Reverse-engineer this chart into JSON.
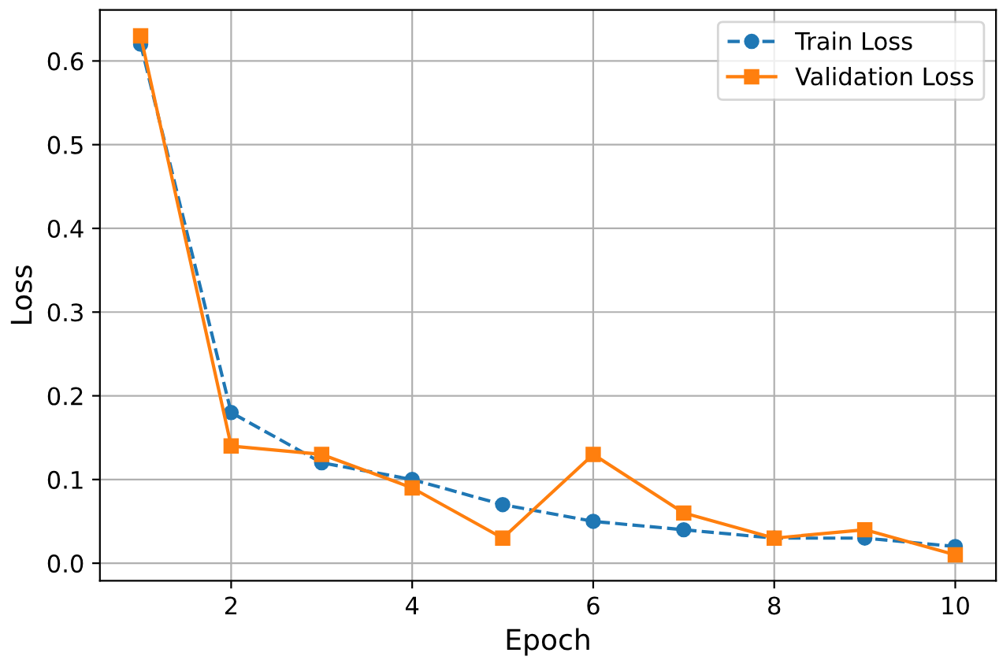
{
  "chart_data": {
    "type": "line",
    "xlabel": "Epoch",
    "ylabel": "Loss",
    "x": [
      1,
      2,
      3,
      4,
      5,
      6,
      7,
      8,
      9,
      10
    ],
    "series": [
      {
        "name": "Train Loss",
        "color": "#1f77b4",
        "marker": "circle",
        "line_style": "dashed",
        "values": [
          0.62,
          0.18,
          0.12,
          0.1,
          0.07,
          0.05,
          0.04,
          0.03,
          0.03,
          0.02
        ]
      },
      {
        "name": "Validation Loss",
        "color": "#ff7f0e",
        "marker": "square",
        "line_style": "solid",
        "values": [
          0.63,
          0.14,
          0.13,
          0.09,
          0.03,
          0.13,
          0.06,
          0.03,
          0.04,
          0.01
        ]
      }
    ],
    "xlim": [
      0.55,
      10.45
    ],
    "ylim": [
      -0.021,
      0.661
    ],
    "xticks": [
      2,
      4,
      6,
      8,
      10
    ],
    "yticks": [
      {
        "value": 0,
        "label": "0.0"
      },
      0.1,
      0.2,
      0.3,
      0.4,
      0.5,
      0.6
    ],
    "grid": true,
    "legend": "top right"
  }
}
